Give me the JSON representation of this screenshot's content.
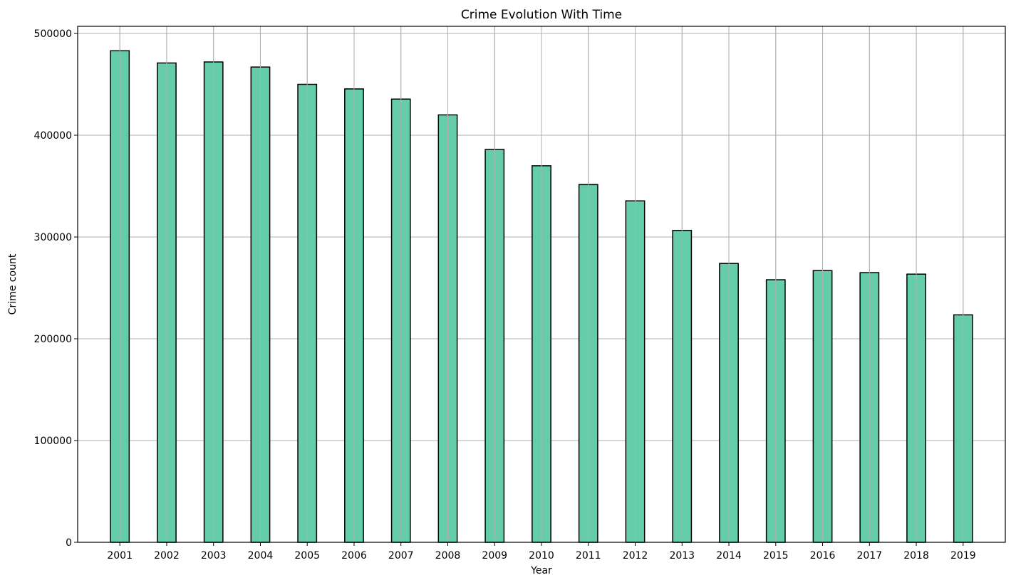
{
  "chart_data": {
    "type": "bar",
    "title": "Crime Evolution With Time",
    "xlabel": "Year",
    "ylabel": "Crime count",
    "categories": [
      "2001",
      "2002",
      "2003",
      "2004",
      "2005",
      "2006",
      "2007",
      "2008",
      "2009",
      "2010",
      "2011",
      "2012",
      "2013",
      "2014",
      "2015",
      "2016",
      "2017",
      "2018",
      "2019"
    ],
    "values": [
      483000,
      471000,
      472000,
      467000,
      450000,
      445500,
      435500,
      420000,
      386000,
      370000,
      351500,
      335500,
      306500,
      274000,
      258000,
      267000,
      265000,
      263500,
      223500
    ],
    "ylim": [
      0,
      507000
    ],
    "yticks": [
      0,
      100000,
      200000,
      300000,
      400000,
      500000
    ],
    "ytick_labels": [
      "0",
      "100000",
      "200000",
      "300000",
      "400000",
      "500000"
    ],
    "grid": true,
    "bar_color": "#66cdaa",
    "bar_edge_color": "#000000",
    "grid_color": "#b0b0b0"
  }
}
